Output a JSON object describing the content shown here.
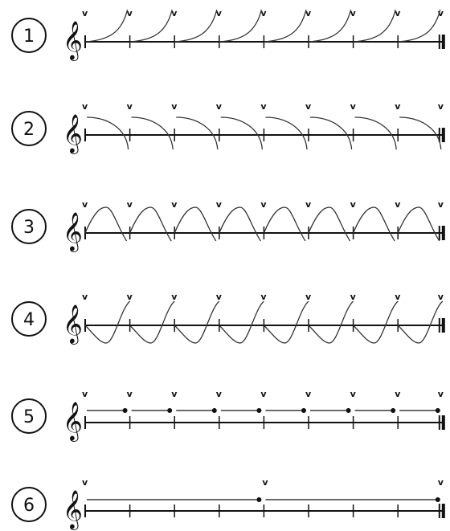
{
  "exercises": [
    {
      "label": "1",
      "pattern": "rising-arc"
    },
    {
      "label": "2",
      "pattern": "falling-arc"
    },
    {
      "label": "3",
      "pattern": "up-down-wave"
    },
    {
      "label": "4",
      "pattern": "down-up-wave"
    },
    {
      "label": "5",
      "pattern": "sustained-held"
    },
    {
      "label": "6",
      "pattern": "long-sustained"
    }
  ],
  "symbols": {
    "clef": "treble-clef",
    "breath_mark": "v",
    "end_mark": "final-barline"
  },
  "colors": {
    "ink": "#111111",
    "curve": "#333333",
    "background": "#ffffff"
  }
}
